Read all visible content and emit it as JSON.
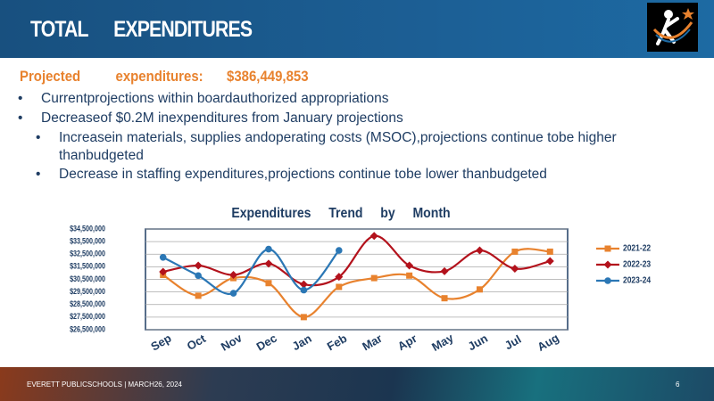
{
  "header": {
    "title": "TOTAL EXPENDITURES"
  },
  "intro": {
    "label": "Projected expenditures:",
    "amount": "$386,449,853"
  },
  "bullets": [
    {
      "text": "Currentprojections within boardauthorized appropriations"
    },
    {
      "text": "Decreaseof $0.2M inexpenditures from January projections",
      "children": [
        "Increasein materials, supplies andoperating costs (MSOC),projections continue tobe higher thanbudgeted",
        "Decrease in staffing expenditures,projections continue tobe lower thanbudgeted"
      ]
    }
  ],
  "chart_data": {
    "type": "line",
    "title": "Expenditures Trend by Month",
    "categories": [
      "Sep",
      "Oct",
      "Nov",
      "Dec",
      "Jan",
      "Feb",
      "Mar",
      "Apr",
      "May",
      "Jun",
      "Jul",
      "Aug"
    ],
    "series": [
      {
        "name": "2021-22",
        "color": "#e8822e",
        "marker": "square",
        "values": [
          30850000,
          29200000,
          30600000,
          30200000,
          27500000,
          29900000,
          30600000,
          30800000,
          29000000,
          29700000,
          32700000,
          32700000
        ]
      },
      {
        "name": "2022-23",
        "color": "#b3121c",
        "marker": "diamond",
        "values": [
          31100000,
          31600000,
          30850000,
          31750000,
          30100000,
          30700000,
          33950000,
          31600000,
          31150000,
          32800000,
          31350000,
          31950000
        ]
      },
      {
        "name": "2023-24",
        "color": "#2b77b5",
        "marker": "circle",
        "values": [
          32250000,
          30800000,
          29400000,
          32900000,
          29650000,
          32800000,
          null,
          null,
          null,
          null,
          null,
          null
        ]
      }
    ],
    "ylim": [
      26500000,
      34500000
    ],
    "yticks": [
      {
        "value": 26500000,
        "label": "$26,500,000"
      },
      {
        "value": 27500000,
        "label": "$27,500,000"
      },
      {
        "value": 28500000,
        "label": "$28,500,000"
      },
      {
        "value": 29500000,
        "label": "$29,500,000"
      },
      {
        "value": 30500000,
        "label": "$30,500,000"
      },
      {
        "value": 31500000,
        "label": "$31,500,000"
      },
      {
        "value": 32500000,
        "label": "$32,500,000"
      },
      {
        "value": 33500000,
        "label": "$33,500,000"
      },
      {
        "value": 34500000,
        "label": "$34,500,000"
      }
    ],
    "grid": true,
    "legend": "right",
    "smooth": true
  },
  "footer": {
    "text": "EVERETT PUBLICSCHOOLS | MARCH26, 2024",
    "page": "6"
  }
}
